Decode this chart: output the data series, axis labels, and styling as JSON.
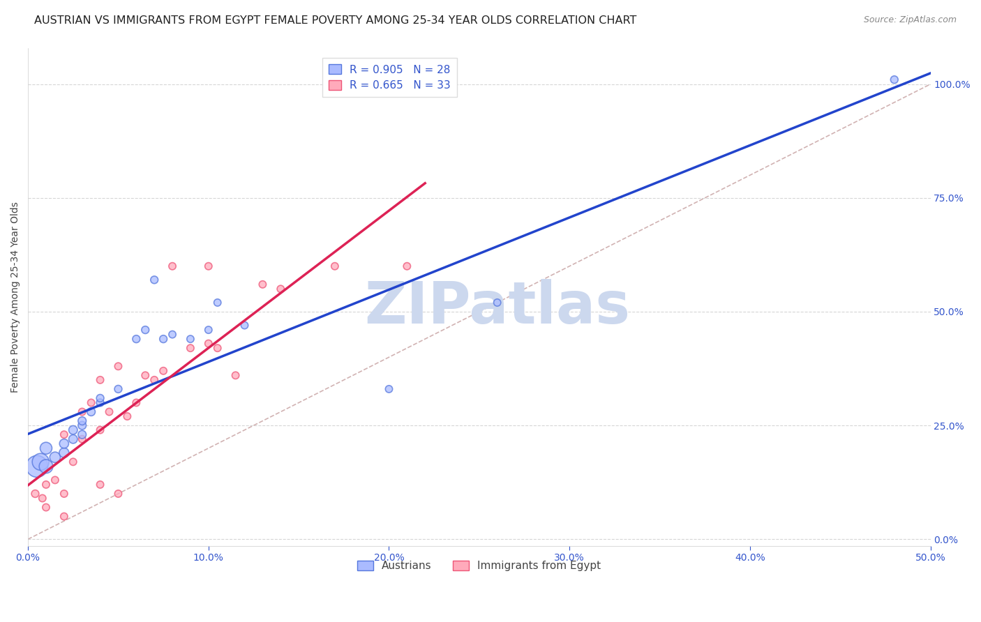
{
  "title": "AUSTRIAN VS IMMIGRANTS FROM EGYPT FEMALE POVERTY AMONG 25-34 YEAR OLDS CORRELATION CHART",
  "source": "Source: ZipAtlas.com",
  "ylabel": "Female Poverty Among 25-34 Year Olds",
  "xlim": [
    0.0,
    0.5
  ],
  "ylim": [
    -0.015,
    1.08
  ],
  "xticks": [
    0.0,
    0.1,
    0.2,
    0.3,
    0.4,
    0.5
  ],
  "yticks_right": [
    0.0,
    0.25,
    0.5,
    0.75,
    1.0
  ],
  "blue_R": 0.905,
  "blue_N": 28,
  "pink_R": 0.665,
  "pink_N": 33,
  "blue_fill_color": "#aabbff",
  "blue_edge_color": "#5577dd",
  "pink_fill_color": "#ffaabb",
  "pink_edge_color": "#ee5577",
  "blue_line_color": "#2244cc",
  "pink_line_color": "#dd2255",
  "ref_line_color": "#ccaaaa",
  "legend_label_blue": "Austrians",
  "legend_label_pink": "Immigrants from Egypt",
  "blue_scatter_x": [
    0.005,
    0.007,
    0.01,
    0.01,
    0.015,
    0.02,
    0.02,
    0.025,
    0.025,
    0.03,
    0.03,
    0.03,
    0.035,
    0.04,
    0.04,
    0.05,
    0.06,
    0.065,
    0.07,
    0.075,
    0.08,
    0.09,
    0.1,
    0.105,
    0.12,
    0.2,
    0.26,
    0.48
  ],
  "blue_scatter_y": [
    0.16,
    0.17,
    0.16,
    0.2,
    0.18,
    0.19,
    0.21,
    0.22,
    0.24,
    0.23,
    0.25,
    0.26,
    0.28,
    0.3,
    0.31,
    0.33,
    0.44,
    0.46,
    0.57,
    0.44,
    0.45,
    0.44,
    0.46,
    0.52,
    0.47,
    0.33,
    0.52,
    1.01
  ],
  "blue_scatter_sizes": [
    500,
    300,
    200,
    150,
    120,
    100,
    90,
    80,
    80,
    70,
    70,
    70,
    70,
    60,
    60,
    60,
    60,
    60,
    60,
    60,
    55,
    55,
    55,
    55,
    55,
    55,
    55,
    60
  ],
  "pink_scatter_x": [
    0.004,
    0.008,
    0.01,
    0.01,
    0.015,
    0.02,
    0.02,
    0.02,
    0.025,
    0.03,
    0.03,
    0.035,
    0.04,
    0.04,
    0.04,
    0.045,
    0.05,
    0.05,
    0.055,
    0.06,
    0.065,
    0.07,
    0.075,
    0.08,
    0.09,
    0.1,
    0.1,
    0.105,
    0.115,
    0.13,
    0.14,
    0.17,
    0.21
  ],
  "pink_scatter_y": [
    0.1,
    0.09,
    0.07,
    0.12,
    0.13,
    0.05,
    0.1,
    0.23,
    0.17,
    0.22,
    0.28,
    0.3,
    0.12,
    0.24,
    0.35,
    0.28,
    0.38,
    0.1,
    0.27,
    0.3,
    0.36,
    0.35,
    0.37,
    0.6,
    0.42,
    0.43,
    0.6,
    0.42,
    0.36,
    0.56,
    0.55,
    0.6,
    0.6
  ],
  "pink_scatter_sizes": [
    60,
    55,
    55,
    55,
    55,
    55,
    55,
    55,
    55,
    55,
    55,
    55,
    55,
    55,
    55,
    55,
    55,
    55,
    55,
    55,
    55,
    55,
    55,
    55,
    55,
    55,
    55,
    55,
    55,
    55,
    55,
    55,
    55
  ],
  "background_color": "#ffffff",
  "grid_color": "#cccccc",
  "title_fontsize": 11.5,
  "axis_label_fontsize": 10,
  "tick_fontsize": 10,
  "watermark_text": "ZIPatlas",
  "watermark_color": "#ccd8ee",
  "watermark_fontsize": 60
}
